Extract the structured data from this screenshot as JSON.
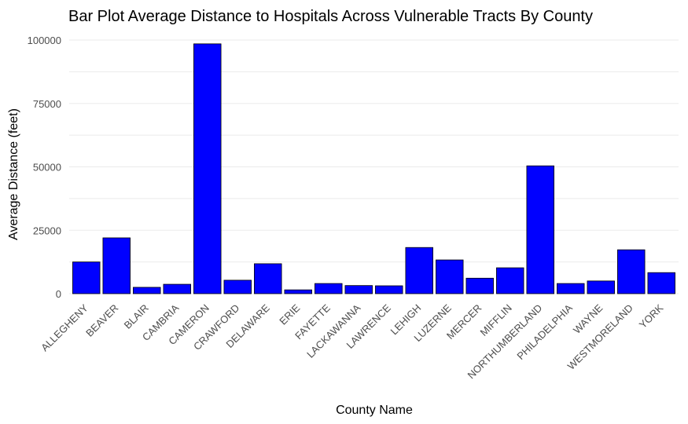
{
  "chart_data": {
    "type": "bar",
    "title": "Bar Plot Average Distance to Hospitals Across Vulnerable Tracts By County",
    "xlabel": "County Name",
    "ylabel": "Average Distance (feet)",
    "ylim": [
      0,
      100000
    ],
    "yticks": [
      0,
      25000,
      50000,
      75000,
      100000
    ],
    "ytick_labels": [
      "0",
      "25000",
      "50000",
      "75000",
      "100000"
    ],
    "grid": true,
    "legend": "none",
    "bar_color": "#0000ff",
    "categories": [
      "ALLEGHENY",
      "BEAVER",
      "BLAIR",
      "CAMBRIA",
      "CAMERON",
      "CRAWFORD",
      "DELAWARE",
      "ERIE",
      "FAYETTE",
      "LACKAWANNA",
      "LAWRENCE",
      "LEHIGH",
      "LUZERNE",
      "MERCER",
      "MIFFLIN",
      "NORTHUMBERLAND",
      "PHILADELPHIA",
      "WAYNE",
      "WESTMORELAND",
      "YORK"
    ],
    "values": [
      12500,
      22000,
      2500,
      3700,
      98500,
      5300,
      11800,
      1500,
      4000,
      3200,
      3100,
      18200,
      13300,
      6100,
      10200,
      50400,
      4000,
      5000,
      17300,
      8300
    ]
  }
}
